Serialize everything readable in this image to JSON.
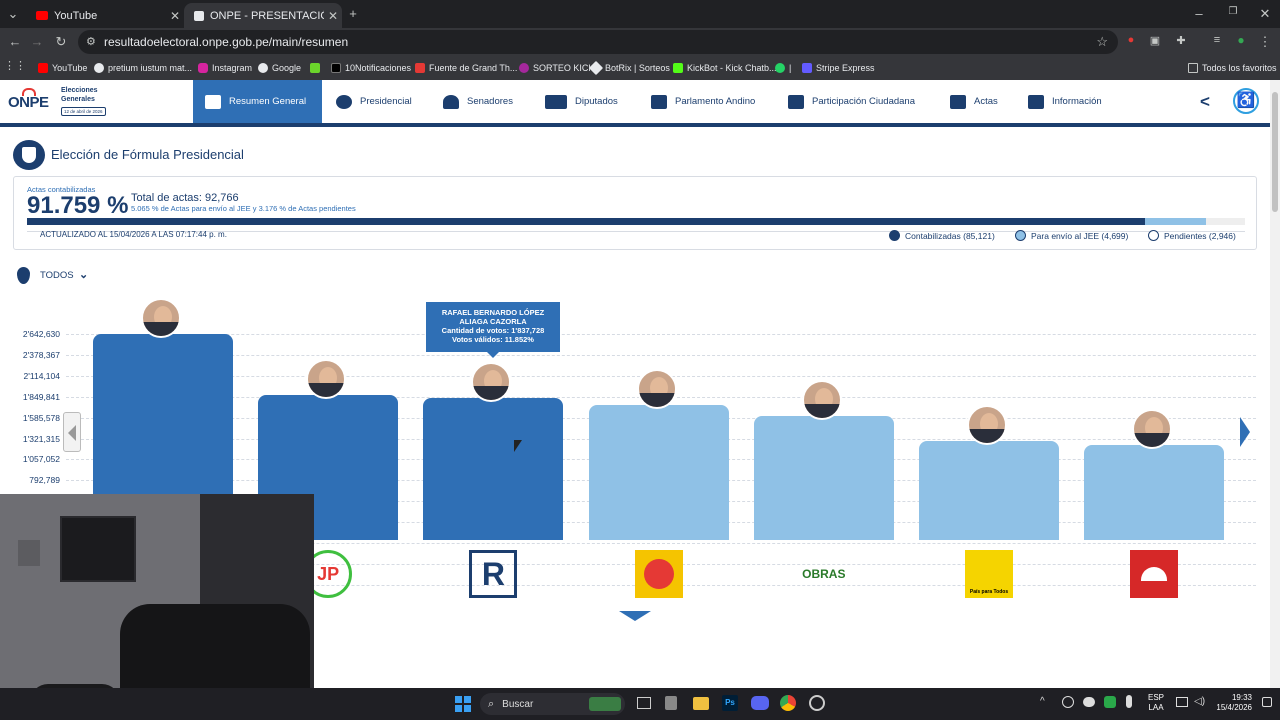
{
  "browser": {
    "tabs": [
      {
        "title": "YouTube"
      },
      {
        "title": "ONPE - PRESENTACIÓN DE RES"
      }
    ],
    "url": "resultadoelectoral.onpe.gob.pe/main/resumen",
    "bookmarks": [
      "YouTube",
      "pretium iustum mat...",
      "Instagram",
      "Google",
      "10Notificaciones",
      "Fuente de Grand Th...",
      "SORTEO KICK",
      "BotRix | Sorteos",
      "KickBot - Kick Chatb...",
      "|",
      "Stripe Express"
    ],
    "all_bookmarks": "Todos los favoritos"
  },
  "site": {
    "logo_text": "ONPE",
    "logo_sub1": "Elecciones",
    "logo_sub2": "Generales",
    "logo_date": "12 de abril de 2026",
    "nav": [
      "Resumen General",
      "Presidencial",
      "Senadores",
      "Diputados",
      "Parlamento Andino",
      "Participación Ciudadana",
      "Actas",
      "Información"
    ],
    "page_title": "Elección de Fórmula Presidencial"
  },
  "summary": {
    "actas_label": "Actas contabilizadas",
    "percent": "91.759 %",
    "total_actas": "Total de actas: 92,766",
    "sub_note": "5.065 % de Actas para envío al JEE y 3.176 % de Actas pendientes",
    "updated": "ACTUALIZADO AL 15/04/2026 A LAS 07:17:44 p. m.",
    "progress": {
      "contabilizadas": 0.91759,
      "jee": 0.05065,
      "pendientes": 0.03176
    },
    "legend": [
      "Contabilizadas (85,121)",
      "Para envío al JEE (4,699)",
      "Pendientes (2,946)"
    ],
    "colors": {
      "contabilizadas": "#1c3e6e",
      "jee": "#8fc1e6",
      "pendientes": "#ffffff"
    }
  },
  "filter": {
    "label": "TODOS"
  },
  "tooltip": {
    "name1": "RAFAEL BERNARDO LÓPEZ",
    "name2": "ALIAGA CAZORLA",
    "votes": "Cantidad de votos: 1'837,728",
    "valid": "Votos válidos: 11.852%"
  },
  "chart_data": {
    "type": "bar",
    "y_ticks": [
      "2'642,630",
      "2'378,367",
      "2'114,104",
      "1'849,841",
      "1'585,578",
      "1'321,315",
      "1'057,052",
      "792,789"
    ],
    "values": [
      2642630,
      1870000,
      1837728,
      1750000,
      1610000,
      1290000,
      1240000
    ],
    "bar_colors": [
      "#2f6fb5",
      "#2f6fb5",
      "#2f6fb5",
      "#8fc1e6",
      "#8fc1e6",
      "#8fc1e6",
      "#8fc1e6"
    ],
    "party_logos": [
      "",
      "JP",
      "R",
      "sun",
      "OBRAS",
      "País para Todos",
      "roof"
    ]
  },
  "taskbar": {
    "search": "Buscar",
    "lang1": "ESP",
    "lang2": "LAA",
    "time": "19:33",
    "date": "15/4/2026"
  }
}
